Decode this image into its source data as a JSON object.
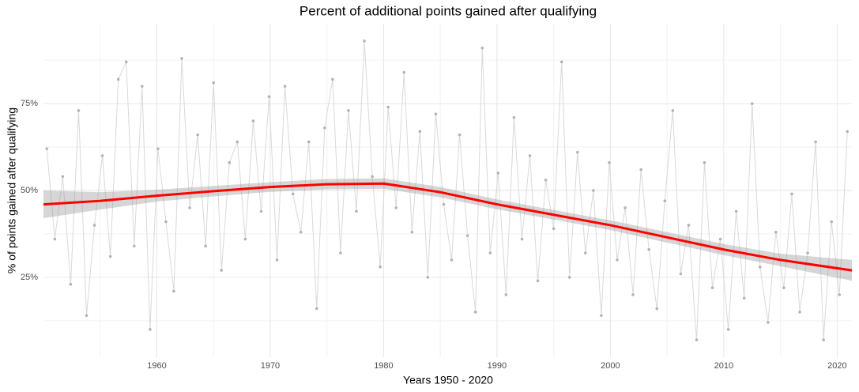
{
  "chart_data": {
    "type": "line",
    "title": "Percent of additional points gained after qualifying",
    "x_label": "Years 1950 - 2020",
    "y_label": "% of points gained after qualifying",
    "xlim": [
      1950,
      2021.3
    ],
    "ylim": [
      2,
      98
    ],
    "xticks": [
      1960,
      1970,
      1980,
      1990,
      2000,
      2010,
      2020
    ],
    "yticks": [
      {
        "value": 25,
        "label": "25%"
      },
      {
        "value": 50,
        "label": "50%"
      },
      {
        "value": 75,
        "label": "75%"
      }
    ],
    "minor_xticks": [
      1955,
      1965,
      1975,
      1985,
      1995,
      2005,
      2015
    ],
    "minor_yticks": [
      12.5,
      37.5,
      62.5,
      87.5
    ],
    "grid": true,
    "points": {
      "color": "#b3b3b3",
      "line_color": "#d9d9d9",
      "x": [
        1950.3,
        1951.0,
        1951.7,
        1952.4,
        1953.1,
        1953.8,
        1954.5,
        1955.2,
        1955.9,
        1956.6,
        1957.3,
        1958.0,
        1958.7,
        1959.4,
        1960.1,
        1960.8,
        1961.5,
        1962.2,
        1962.9,
        1963.6,
        1964.3,
        1965.0,
        1965.7,
        1966.4,
        1967.1,
        1967.8,
        1968.5,
        1969.2,
        1969.9,
        1970.6,
        1971.3,
        1972.0,
        1972.7,
        1973.4,
        1974.1,
        1974.8,
        1975.5,
        1976.2,
        1976.9,
        1977.6,
        1978.3,
        1979.0,
        1979.7,
        1980.4,
        1981.1,
        1981.8,
        1982.5,
        1983.2,
        1983.9,
        1984.6,
        1985.3,
        1986.0,
        1986.7,
        1987.4,
        1988.1,
        1988.7,
        1989.4,
        1990.1,
        1990.8,
        1991.5,
        1992.2,
        1992.9,
        1993.6,
        1994.3,
        1995.0,
        1995.7,
        1996.4,
        1997.1,
        1997.8,
        1998.5,
        1999.2,
        1999.9,
        2000.6,
        2001.3,
        2002.0,
        2002.7,
        2003.4,
        2004.1,
        2004.8,
        2005.5,
        2006.2,
        2006.9,
        2007.6,
        2008.3,
        2009.0,
        2009.7,
        2010.4,
        2011.1,
        2011.8,
        2012.5,
        2013.2,
        2013.9,
        2014.6,
        2015.3,
        2016.0,
        2016.7,
        2017.4,
        2018.1,
        2018.8,
        2019.5,
        2020.2,
        2020.9
      ],
      "values": [
        62,
        36,
        54,
        23,
        73,
        14,
        40,
        60,
        31,
        82,
        87,
        34,
        80,
        10,
        62,
        41,
        21,
        88,
        45,
        66,
        34,
        81,
        27,
        58,
        64,
        36,
        70,
        44,
        77,
        30,
        80,
        49,
        38,
        64,
        16,
        68,
        82,
        32,
        73,
        44,
        93,
        54,
        28,
        74,
        45,
        84,
        38,
        67,
        25,
        72,
        46,
        30,
        66,
        37,
        15,
        91,
        32,
        55,
        20,
        71,
        36,
        60,
        24,
        53,
        39,
        87,
        25,
        61,
        32,
        50,
        14,
        58,
        30,
        45,
        20,
        56,
        33,
        16,
        47,
        73,
        26,
        40,
        7,
        58,
        22,
        36,
        10,
        44,
        19,
        75,
        28,
        12,
        38,
        22,
        49,
        15,
        32,
        64,
        7,
        41,
        20,
        67
      ]
    },
    "smooth": {
      "color": "#ff0000",
      "band_color": "#999999",
      "x": [
        1950,
        1955,
        1960,
        1965,
        1970,
        1975,
        1980,
        1985,
        1990,
        1995,
        2000,
        2005,
        2010,
        2015,
        2021.3
      ],
      "values": [
        46,
        47,
        48.5,
        49.8,
        51,
        51.8,
        52,
        49.5,
        46,
        43,
        40,
        36.5,
        33,
        30,
        27
      ],
      "lower": [
        42,
        44.5,
        46.8,
        48.3,
        49.6,
        50.3,
        50.5,
        48,
        44.6,
        41.6,
        38.6,
        35,
        31.4,
        28.2,
        24
      ],
      "upper": [
        50,
        49.5,
        50.2,
        51.3,
        52.4,
        53.3,
        53.5,
        51,
        47.4,
        44.4,
        41.4,
        38,
        34.6,
        31.8,
        30
      ]
    }
  }
}
